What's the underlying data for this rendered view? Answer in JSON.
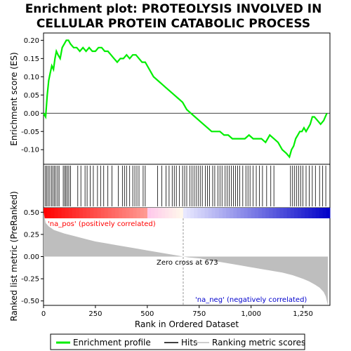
{
  "title_line1": "Enrichment plot: PROTEOLYSIS INVOLVED IN",
  "title_line2": "CELLULAR PROTEIN CATABOLIC PROCESS",
  "colors": {
    "enrichment_line": "#00ee00",
    "hits": "#000000",
    "metric_fill": "#bebebe",
    "pos_label": "#ff0000",
    "neg_label": "#0000cc",
    "zero_cross_line": "#999999"
  },
  "legend": {
    "items": [
      {
        "label": "Enrichment profile",
        "color": "#00ee00",
        "style": "line"
      },
      {
        "label": "Hits",
        "color": "#000000",
        "style": "line"
      },
      {
        "label": "Ranking metric scores",
        "color": "#bebebe",
        "style": "line"
      }
    ]
  },
  "chart_data": [
    {
      "type": "line",
      "name": "enrichment-profile",
      "ylabel": "Enrichment score (ES)",
      "xlim": [
        0,
        1380
      ],
      "ylim": [
        -0.14,
        0.22
      ],
      "yticks": [
        "-0.10",
        "-0.05",
        "0.00",
        "0.05",
        "0.10",
        "0.15",
        "0.20"
      ],
      "ytick_values": [
        -0.1,
        -0.05,
        0.0,
        0.05,
        0.1,
        0.15,
        0.2
      ],
      "x": [
        0,
        10,
        18,
        25,
        32,
        40,
        48,
        55,
        62,
        70,
        80,
        90,
        100,
        110,
        120,
        130,
        145,
        160,
        175,
        190,
        205,
        220,
        235,
        250,
        265,
        280,
        295,
        310,
        325,
        340,
        355,
        370,
        385,
        400,
        415,
        430,
        445,
        460,
        475,
        490,
        510,
        530,
        550,
        570,
        590,
        610,
        630,
        650,
        670,
        690,
        710,
        730,
        750,
        770,
        790,
        810,
        830,
        850,
        870,
        890,
        910,
        930,
        950,
        970,
        990,
        1010,
        1030,
        1050,
        1070,
        1090,
        1110,
        1130,
        1150,
        1170,
        1185,
        1195,
        1205,
        1215,
        1225,
        1235,
        1245,
        1255,
        1265,
        1275,
        1285,
        1295,
        1305,
        1320,
        1335,
        1350,
        1365
      ],
      "y": [
        0.0,
        -0.01,
        0.05,
        0.09,
        0.11,
        0.13,
        0.12,
        0.15,
        0.17,
        0.16,
        0.15,
        0.18,
        0.19,
        0.2,
        0.2,
        0.19,
        0.18,
        0.18,
        0.17,
        0.18,
        0.17,
        0.18,
        0.17,
        0.17,
        0.18,
        0.18,
        0.17,
        0.17,
        0.16,
        0.15,
        0.14,
        0.15,
        0.15,
        0.16,
        0.15,
        0.16,
        0.16,
        0.15,
        0.14,
        0.14,
        0.12,
        0.1,
        0.09,
        0.08,
        0.07,
        0.06,
        0.05,
        0.04,
        0.03,
        0.01,
        0.0,
        -0.01,
        -0.02,
        -0.03,
        -0.04,
        -0.05,
        -0.05,
        -0.05,
        -0.06,
        -0.06,
        -0.07,
        -0.07,
        -0.07,
        -0.07,
        -0.06,
        -0.07,
        -0.07,
        -0.07,
        -0.08,
        -0.06,
        -0.07,
        -0.08,
        -0.1,
        -0.11,
        -0.12,
        -0.1,
        -0.09,
        -0.07,
        -0.06,
        -0.05,
        -0.05,
        -0.04,
        -0.05,
        -0.04,
        -0.03,
        -0.01,
        -0.01,
        -0.02,
        -0.03,
        -0.02,
        0.0
      ]
    },
    {
      "type": "scatter",
      "name": "hits",
      "xlim": [
        0,
        1380
      ],
      "hit_ranks": [
        8,
        15,
        22,
        30,
        38,
        45,
        52,
        60,
        68,
        75,
        95,
        102,
        108,
        115,
        122,
        130,
        165,
        180,
        200,
        210,
        225,
        240,
        260,
        275,
        290,
        310,
        330,
        360,
        380,
        390,
        400,
        415,
        430,
        440,
        450,
        460,
        480,
        490,
        550,
        570,
        590,
        605,
        620,
        630,
        640,
        655,
        670,
        680,
        690,
        705,
        715,
        725,
        735,
        745,
        755,
        765,
        780,
        790,
        800,
        815,
        825,
        840,
        850,
        860,
        875,
        885,
        895,
        905,
        915,
        925,
        935,
        945,
        960,
        975,
        985,
        995,
        1010,
        1025,
        1040,
        1055,
        1075,
        1095,
        1110,
        1190,
        1200,
        1210,
        1220,
        1230,
        1240,
        1250,
        1265,
        1280,
        1295,
        1310,
        1330,
        1345,
        1360
      ]
    },
    {
      "type": "area",
      "name": "ranked-list-metric",
      "ylabel": "Ranked list metric (PreRanked)",
      "xlabel": "Rank in Ordered Dataset",
      "xlim": [
        0,
        1380
      ],
      "ylim": [
        -0.55,
        0.55
      ],
      "xticks": [
        "0",
        "250",
        "500",
        "750",
        "1,000",
        "1,250"
      ],
      "xtick_values": [
        0,
        250,
        500,
        750,
        1000,
        1250
      ],
      "yticks": [
        "-0.50",
        "-0.25",
        "0.00",
        "0.25",
        "0.50"
      ],
      "ytick_values": [
        -0.5,
        -0.25,
        0.0,
        0.25,
        0.5
      ],
      "x": [
        0,
        10,
        25,
        50,
        100,
        150,
        200,
        250,
        300,
        350,
        400,
        450,
        500,
        550,
        600,
        650,
        673,
        700,
        750,
        800,
        850,
        900,
        950,
        1000,
        1050,
        1100,
        1150,
        1200,
        1250,
        1280,
        1310,
        1330,
        1350,
        1360,
        1365,
        1370
      ],
      "y": [
        0.5,
        0.38,
        0.34,
        0.3,
        0.26,
        0.23,
        0.2,
        0.17,
        0.15,
        0.13,
        0.11,
        0.09,
        0.07,
        0.05,
        0.03,
        0.01,
        0.0,
        -0.01,
        -0.02,
        -0.04,
        -0.06,
        -0.08,
        -0.1,
        -0.12,
        -0.14,
        -0.16,
        -0.18,
        -0.21,
        -0.25,
        -0.28,
        -0.32,
        -0.35,
        -0.4,
        -0.45,
        -0.5,
        -0.55
      ]
    }
  ],
  "annotations": {
    "pos_label": "'na_pos' (positively correlated)",
    "neg_label": "'na_neg' (negatively correlated)",
    "zero_cross_label": "Zero cross at 673",
    "zero_cross_rank": 673
  }
}
